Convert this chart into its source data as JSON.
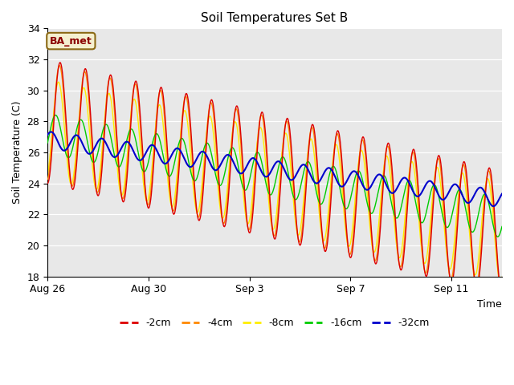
{
  "title": "Soil Temperatures Set B",
  "xlabel": "Time",
  "ylabel": "Soil Temperature (C)",
  "ylim": [
    18,
    34
  ],
  "yticks": [
    18,
    20,
    22,
    24,
    26,
    28,
    30,
    32,
    34
  ],
  "xtick_labels": [
    "Aug 26",
    "Aug 30",
    "Sep 3",
    "Sep 7",
    "Sep 11"
  ],
  "xtick_positions": [
    0,
    4,
    8,
    12,
    16
  ],
  "total_days": 18,
  "annotation_text": "BA_met",
  "bg_color": "#e8e8e8",
  "line_colors": {
    "-2cm": "#dd0000",
    "-4cm": "#ff8800",
    "-8cm": "#ffee00",
    "-16cm": "#00cc00",
    "-32cm": "#0000cc"
  },
  "series_params": {
    "-2cm": {
      "amp": 4.0,
      "phase": 0.0,
      "trend_s": 28.0,
      "trend_e": 20.8
    },
    "-4cm": {
      "amp": 3.8,
      "phase": 0.15,
      "trend_s": 28.0,
      "trend_e": 20.8
    },
    "-8cm": {
      "amp": 3.2,
      "phase": 0.4,
      "trend_s": 27.5,
      "trend_e": 20.9
    },
    "-16cm": {
      "amp": 1.3,
      "phase": 1.1,
      "trend_s": 27.2,
      "trend_e": 21.8
    },
    "-32cm": {
      "amp": 0.55,
      "phase": 2.2,
      "trend_s": 26.8,
      "trend_e": 23.0
    }
  },
  "legend_labels": [
    "-2cm",
    "-4cm",
    "-8cm",
    "-16cm",
    "-32cm"
  ]
}
